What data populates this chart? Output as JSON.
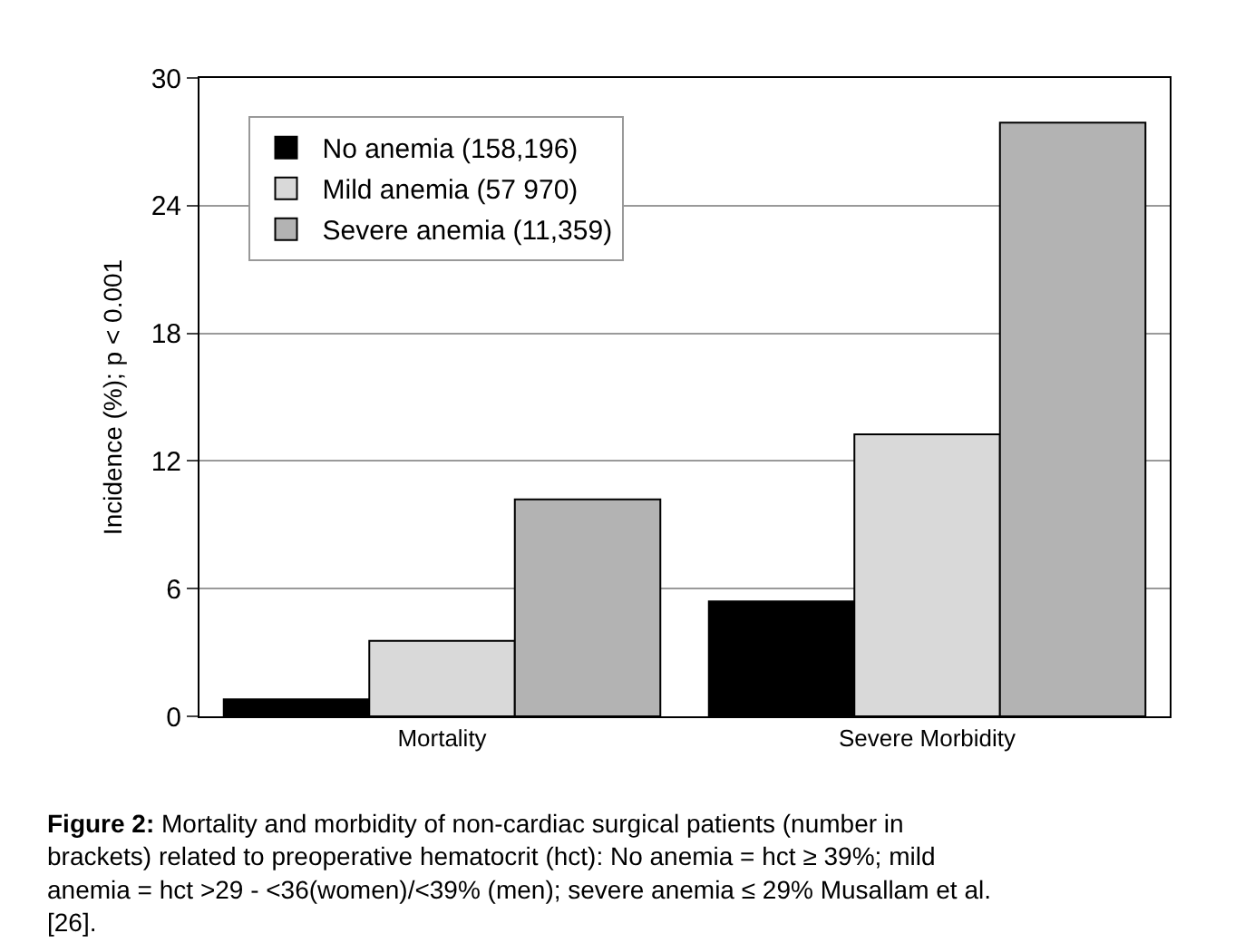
{
  "chart_data": {
    "type": "bar",
    "ylabel": "Incidence (%); p < 0.001",
    "categories": [
      "Mortality",
      "Severe Morbidity"
    ],
    "series": [
      {
        "name": "No anemia (158,196)",
        "color": "#000000",
        "values": [
          0.8,
          5.4
        ]
      },
      {
        "name": "Mild anemia (57 970)",
        "color": "#d9d9d9",
        "values": [
          3.55,
          13.25
        ]
      },
      {
        "name": "Severe anemia (11,359)",
        "color": "#b3b3b3",
        "values": [
          10.2,
          27.9
        ]
      }
    ],
    "ylim": [
      0,
      30
    ],
    "yticks": [
      0,
      6,
      12,
      18,
      24,
      30
    ],
    "grid": "y",
    "legend": "top left",
    "annotations": [
      "Figure 2: Mortality and morbidity of non-cardiac surgical patients (number in brackets) related to preoperative hematocrit (hct): No anemia = hct ≥ 39%; mild anemia = hct >29 - <36(women)/<39% (men); severe anemia ≤ 29% Musallam et al. [26]."
    ]
  }
}
